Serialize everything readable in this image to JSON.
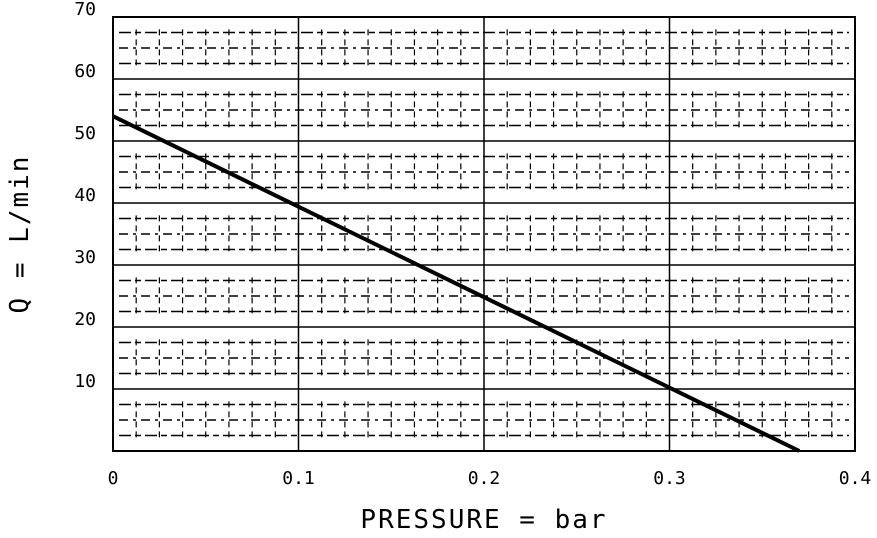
{
  "chart_data": {
    "type": "line",
    "title": "",
    "xlabel": "PRESSURE = bar",
    "ylabel": "Q = L/min",
    "xlim": [
      0,
      0.4
    ],
    "ylim": [
      0,
      70
    ],
    "x_ticks": [
      "0",
      "0.1",
      "0.2",
      "0.3",
      "0.4"
    ],
    "y_ticks": [
      "10",
      "20",
      "30",
      "40",
      "50",
      "60",
      "70"
    ],
    "grid": true,
    "series": [
      {
        "x": [
          0,
          0.37
        ],
        "y": [
          54,
          0
        ]
      }
    ]
  },
  "colors": {
    "line": "#000000",
    "grid": "#000000",
    "background": "#ffffff"
  }
}
